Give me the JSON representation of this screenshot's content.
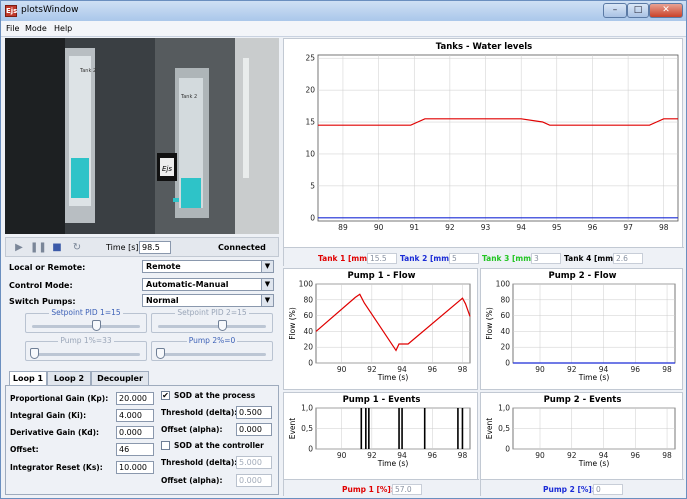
{
  "window": {
    "title": "plotsWindow",
    "app_icon": "Ejs",
    "minimize": "–",
    "maximize": "□",
    "close": "✕"
  },
  "menu": [
    "File",
    "Mode",
    "Help"
  ],
  "camera": {
    "label": "Ejs",
    "tank_left_label": "Tank 2",
    "tank_right_label": "Tank 2"
  },
  "controls": {
    "time_label": "Time [s]:",
    "time_value": "98.5",
    "status": "Connected"
  },
  "form": {
    "local_remote_label": "Local or Remote:",
    "local_remote_value": "Remote",
    "control_mode_label": "Control Mode:",
    "control_mode_value": "Automatic-Manual",
    "switch_pumps_label": "Switch Pumps:",
    "switch_pumps_value": "Normal"
  },
  "sliders": {
    "setpoint1": {
      "label": "Setpoint PID 1=15",
      "value": 0.6
    },
    "setpoint2": {
      "label": "Setpoint PID 2=15",
      "value": 0.6
    },
    "pump1": {
      "label": "Pump 1%=33",
      "value": 0.0
    },
    "pump2": {
      "label": "Pump 2%=0",
      "value": 0.0
    }
  },
  "tabs": [
    "Loop 1",
    "Loop 2",
    "Decoupler"
  ],
  "pid": {
    "kp_label": "Proportional Gain (Kp):",
    "kp": "20.000",
    "ki_label": "Integral Gain (Ki):",
    "ki": "4.000",
    "kd_label": "Derivative Gain (Kd):",
    "kd": "0.000",
    "offset_label": "Offset:",
    "offset": "46",
    "ks_label": "Integrator Reset (Ks):",
    "ks": "10.000"
  },
  "sod": {
    "process_label": "SOD at the process",
    "process_checked": "✔",
    "threshold_label": "Threshold (delta):",
    "threshold_p": "0.500",
    "offset_label": "Offset (alpha):",
    "offset_p": "0.000",
    "controller_label": "SOD at the controller",
    "controller_checked": "",
    "threshold_c": "5.000",
    "offset_c": "0.000"
  },
  "legend": {
    "tank1_label": "Tank 1 [mm]:",
    "tank1": "15.5",
    "tank2_label": "Tank 2 [mm]:",
    "tank2": "5",
    "tank3_label": "Tank 3 [mm]:",
    "tank3": "3",
    "tank4_label": "Tank 4 [mm]:",
    "tank4": "2.6",
    "pump1_label": "Pump 1 [%]:",
    "pump1": "57.0",
    "pump2_label": "Pump 2 [%]:",
    "pump2": "0"
  },
  "colors": {
    "red": "#e00000",
    "blue": "#1a2bd6",
    "green": "#22c522"
  },
  "chart_data": [
    {
      "type": "line",
      "title": "Tanks - Water levels",
      "xlabel": "",
      "ylabel": "",
      "xlim": [
        88.3,
        98.4
      ],
      "ylim": [
        -0.5,
        25.5
      ],
      "xticks": [
        89,
        90,
        91,
        92,
        93,
        94,
        95,
        96,
        97,
        98
      ],
      "yticks": [
        0,
        5,
        10,
        15,
        20,
        25
      ],
      "grid": true,
      "series": [
        {
          "color": "red",
          "x": [
            88.3,
            90.9,
            91.1,
            91.3,
            92.7,
            93.3,
            94.0,
            94.6,
            94.8,
            97.6,
            97.8,
            98.0,
            98.4
          ],
          "y": [
            14.5,
            14.5,
            15.0,
            15.5,
            15.5,
            15.5,
            15.5,
            15.0,
            14.5,
            14.5,
            15.0,
            15.5,
            15.5
          ]
        },
        {
          "color": "blue",
          "x": [
            88.3,
            98.4
          ],
          "y": [
            0,
            0
          ]
        }
      ]
    },
    {
      "type": "line",
      "title": "Pump 1 - Flow",
      "xlabel": "Time (s)",
      "ylabel": "Flow (%)",
      "xlim": [
        88.3,
        98.5
      ],
      "ylim": [
        0,
        100
      ],
      "xticks": [
        90,
        92,
        94,
        96,
        98
      ],
      "yticks": [
        0,
        20,
        40,
        60,
        80,
        100
      ],
      "grid": true,
      "series": [
        {
          "color": "red",
          "x": [
            88.3,
            90.9,
            91.2,
            91.5,
            93.6,
            93.8,
            94.4,
            98.0,
            98.2,
            98.5
          ],
          "y": [
            40,
            83,
            87,
            76,
            16,
            24,
            24,
            82,
            75,
            59
          ]
        }
      ]
    },
    {
      "type": "line",
      "title": "Pump 2 - Flow",
      "xlabel": "Time (s)",
      "ylabel": "Flow (%)",
      "xlim": [
        88.3,
        98.5
      ],
      "ylim": [
        0,
        100
      ],
      "xticks": [
        90,
        92,
        94,
        96,
        98
      ],
      "yticks": [
        0,
        20,
        40,
        60,
        80,
        100
      ],
      "grid": true,
      "series": [
        {
          "color": "blue",
          "x": [
            88.3,
            98.5
          ],
          "y": [
            0,
            0
          ]
        }
      ]
    },
    {
      "type": "bar",
      "title": "Pump 1 - Events",
      "xlabel": "Time (s)",
      "ylabel": "Event",
      "xlim": [
        88.3,
        98.5
      ],
      "ylim": [
        0,
        1
      ],
      "xticks": [
        90,
        92,
        94,
        96,
        98
      ],
      "yticks": [
        "0",
        "0,5",
        "1,0"
      ],
      "grid": true,
      "events": [
        91.3,
        91.6,
        91.8,
        93.8,
        94.0,
        95.5,
        97.7,
        98.0
      ]
    },
    {
      "type": "bar",
      "title": "Pump 2 - Events",
      "xlabel": "Time (s)",
      "ylabel": "Event",
      "xlim": [
        88.3,
        98.5
      ],
      "ylim": [
        0,
        1
      ],
      "xticks": [
        90,
        92,
        94,
        96,
        98
      ],
      "yticks": [
        "0",
        "0,5",
        "1,0"
      ],
      "grid": true,
      "events": []
    }
  ]
}
